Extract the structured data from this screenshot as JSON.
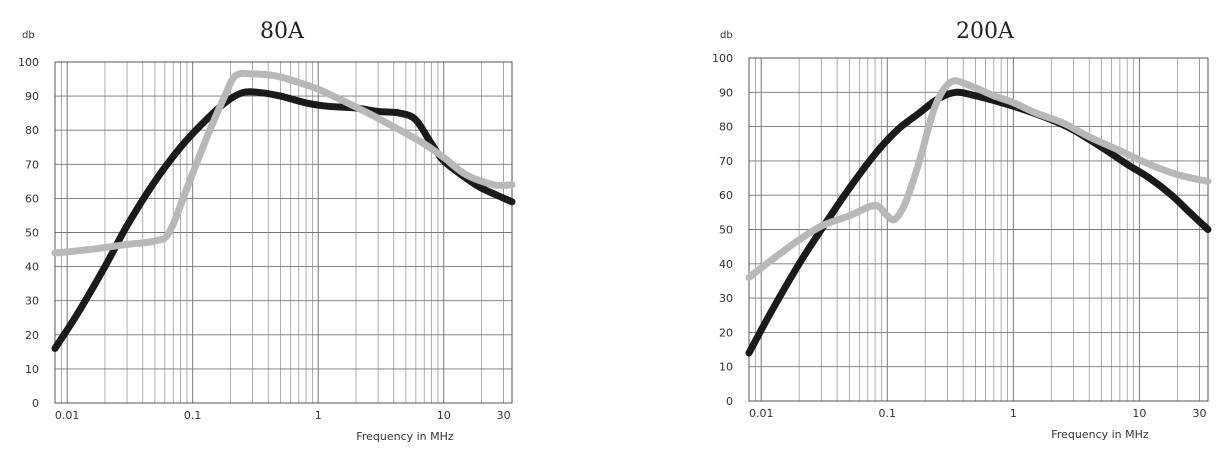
{
  "chart_data": [
    {
      "type": "line",
      "title": "80A",
      "ylabel": "db",
      "xlabel": "Frequency in MHz",
      "xscale": "log",
      "xlim": [
        0.008,
        35
      ],
      "ylim": [
        0,
        100
      ],
      "yticks": [
        "0",
        "10",
        "20",
        "30",
        "40",
        "50",
        "60",
        "70",
        "80",
        "90",
        "100"
      ],
      "xticks": [
        {
          "value": 0.01,
          "label": "0.01"
        },
        {
          "value": 0.1,
          "label": "0.1"
        },
        {
          "value": 1,
          "label": "1"
        },
        {
          "value": 10,
          "label": "10"
        },
        {
          "value": 30,
          "label": "30"
        }
      ],
      "grid": true,
      "series": [
        {
          "color": "#1a1a1a",
          "points": [
            [
              0.008,
              16
            ],
            [
              0.012,
              26
            ],
            [
              0.02,
              40
            ],
            [
              0.03,
              52
            ],
            [
              0.05,
              65
            ],
            [
              0.08,
              75
            ],
            [
              0.12,
              82
            ],
            [
              0.18,
              88
            ],
            [
              0.25,
              91
            ],
            [
              0.35,
              91
            ],
            [
              0.5,
              90
            ],
            [
              0.8,
              88
            ],
            [
              1.2,
              87
            ],
            [
              2,
              86.5
            ],
            [
              3,
              85.5
            ],
            [
              4.5,
              85
            ],
            [
              6,
              83
            ],
            [
              8,
              76
            ],
            [
              10,
              71
            ],
            [
              15,
              66
            ],
            [
              20,
              63
            ],
            [
              35,
              59
            ]
          ]
        },
        {
          "color": "#b8b8b8",
          "points": [
            [
              0.008,
              44
            ],
            [
              0.015,
              45
            ],
            [
              0.03,
              46.5
            ],
            [
              0.05,
              47.5
            ],
            [
              0.065,
              50
            ],
            [
              0.09,
              63
            ],
            [
              0.13,
              78
            ],
            [
              0.18,
              90
            ],
            [
              0.22,
              96
            ],
            [
              0.3,
              96.5
            ],
            [
              0.45,
              96
            ],
            [
              0.7,
              94
            ],
            [
              1,
              92
            ],
            [
              1.5,
              89
            ],
            [
              2.5,
              85
            ],
            [
              4,
              81
            ],
            [
              7,
              76
            ],
            [
              10,
              72
            ],
            [
              15,
              67
            ],
            [
              25,
              64
            ],
            [
              35,
              64
            ]
          ]
        }
      ]
    },
    {
      "type": "line",
      "title": "200A",
      "ylabel": "db",
      "xlabel": "Frequency in MHz",
      "xscale": "log",
      "xlim": [
        0.008,
        35
      ],
      "ylim": [
        0,
        100
      ],
      "yticks": [
        "0",
        "10",
        "20",
        "30",
        "40",
        "50",
        "60",
        "70",
        "80",
        "90",
        "100"
      ],
      "xticks": [
        {
          "value": 0.01,
          "label": "0.01"
        },
        {
          "value": 0.1,
          "label": "0.1"
        },
        {
          "value": 1,
          "label": "1"
        },
        {
          "value": 10,
          "label": "10"
        },
        {
          "value": 30,
          "label": "30"
        }
      ],
      "grid": true,
      "series": [
        {
          "color": "#1a1a1a",
          "points": [
            [
              0.008,
              14
            ],
            [
              0.012,
              26
            ],
            [
              0.02,
              40
            ],
            [
              0.03,
              50
            ],
            [
              0.05,
              62
            ],
            [
              0.08,
              72
            ],
            [
              0.12,
              79
            ],
            [
              0.18,
              84
            ],
            [
              0.25,
              88
            ],
            [
              0.35,
              90
            ],
            [
              0.5,
              89
            ],
            [
              0.8,
              87
            ],
            [
              1.2,
              85
            ],
            [
              2,
              82
            ],
            [
              3,
              79
            ],
            [
              5,
              74
            ],
            [
              8,
              69
            ],
            [
              12,
              65
            ],
            [
              18,
              60
            ],
            [
              25,
              55
            ],
            [
              35,
              50
            ]
          ]
        },
        {
          "color": "#b8b8b8",
          "points": [
            [
              0.008,
              36
            ],
            [
              0.012,
              41
            ],
            [
              0.02,
              47
            ],
            [
              0.03,
              51
            ],
            [
              0.05,
              54
            ],
            [
              0.08,
              57
            ],
            [
              0.1,
              54
            ],
            [
              0.115,
              53
            ],
            [
              0.14,
              58
            ],
            [
              0.18,
              70
            ],
            [
              0.24,
              86
            ],
            [
              0.32,
              93
            ],
            [
              0.45,
              92
            ],
            [
              0.7,
              89
            ],
            [
              1,
              87
            ],
            [
              1.5,
              84
            ],
            [
              2.5,
              81
            ],
            [
              4,
              77
            ],
            [
              7,
              73
            ],
            [
              12,
              69
            ],
            [
              20,
              66
            ],
            [
              35,
              64
            ]
          ]
        }
      ]
    }
  ]
}
